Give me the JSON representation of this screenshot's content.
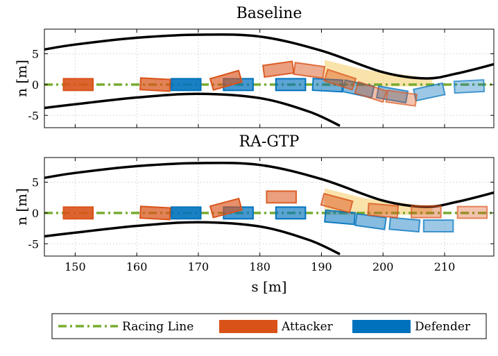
{
  "colors": {
    "racing_line": "#77AC30",
    "attacker": "#D95319",
    "defender": "#0072BD",
    "bound": "#000000",
    "zone": "#F5C242"
  },
  "legend": {
    "racing_line": "Racing Line",
    "attacker": "Attacker",
    "defender": "Defender"
  },
  "chart_data": [
    {
      "type": "line",
      "title": "Baseline",
      "xlabel": "",
      "ylabel": "n [m]",
      "xlim": [
        145,
        218
      ],
      "ylim": [
        -7,
        9
      ],
      "xticks": [
        150,
        160,
        170,
        180,
        190,
        200,
        210
      ],
      "yticks": [
        -5,
        0,
        5
      ],
      "ytick_labels": [
        "-5",
        "0",
        "5"
      ],
      "racing_line_n": 0,
      "upper_bound": [
        [
          145,
          5.7
        ],
        [
          150,
          6.5
        ],
        [
          160,
          7.6
        ],
        [
          170,
          8.1
        ],
        [
          180,
          7.8
        ],
        [
          190,
          5.5
        ],
        [
          200,
          2.0
        ],
        [
          207,
          1.0
        ],
        [
          212,
          1.8
        ],
        [
          218,
          3.3
        ]
      ],
      "lower_bound": [
        [
          145,
          -3.8
        ],
        [
          150,
          -3.2
        ],
        [
          160,
          -2.1
        ],
        [
          170,
          -1.5
        ],
        [
          180,
          -2.2
        ],
        [
          188,
          -4.4
        ],
        [
          193,
          -6.7
        ]
      ],
      "zone": [
        [
          190.5,
          4.0
        ],
        [
          197,
          2.4
        ],
        [
          208,
          1.0
        ],
        [
          208,
          -0.3
        ],
        [
          190.5,
          -0.3
        ]
      ],
      "attacker": [
        {
          "s": 150.5,
          "n": 0.0,
          "heading": 0,
          "alpha": 1.0
        },
        {
          "s": 163.0,
          "n": 0.0,
          "heading": 3,
          "alpha": 0.8
        },
        {
          "s": 174.5,
          "n": 0.7,
          "heading": -16,
          "alpha": 0.7
        },
        {
          "s": 183.0,
          "n": 2.5,
          "heading": -8,
          "alpha": 0.6
        },
        {
          "s": 188.0,
          "n": 2.3,
          "heading": 8,
          "alpha": 0.5
        },
        {
          "s": 193.0,
          "n": 0.8,
          "heading": 18,
          "alpha": 0.45
        },
        {
          "s": 198.0,
          "n": -1.2,
          "heading": 18,
          "alpha": 0.4
        },
        {
          "s": 203.0,
          "n": -2.2,
          "heading": 8,
          "alpha": 0.35
        }
      ],
      "defender": [
        {
          "s": 168.0,
          "n": 0.0,
          "heading": 0,
          "alpha": 1.0
        },
        {
          "s": 176.5,
          "n": 0.0,
          "heading": 0,
          "alpha": 0.8
        },
        {
          "s": 185.0,
          "n": 0.0,
          "heading": 0,
          "alpha": 0.7
        },
        {
          "s": 191.0,
          "n": -0.1,
          "heading": 3,
          "alpha": 0.6
        },
        {
          "s": 196.0,
          "n": -0.7,
          "heading": 12,
          "alpha": 0.5
        },
        {
          "s": 201.5,
          "n": -1.6,
          "heading": 10,
          "alpha": 0.45
        },
        {
          "s": 207.5,
          "n": -1.2,
          "heading": -12,
          "alpha": 0.4
        },
        {
          "s": 214.0,
          "n": -0.3,
          "heading": -3,
          "alpha": 0.35
        }
      ]
    },
    {
      "type": "line",
      "title": "RA-GTP",
      "xlabel": "s [m]",
      "ylabel": "n [m]",
      "xlim": [
        145,
        218
      ],
      "ylim": [
        -7,
        9
      ],
      "xticks": [
        150,
        160,
        170,
        180,
        190,
        200,
        210
      ],
      "yticks": [
        -5,
        0,
        5
      ],
      "ytick_labels": [
        "-5",
        "0",
        "5"
      ],
      "racing_line_n": 0,
      "upper_bound": [
        [
          145,
          5.7
        ],
        [
          150,
          6.5
        ],
        [
          160,
          7.6
        ],
        [
          170,
          8.1
        ],
        [
          180,
          7.8
        ],
        [
          190,
          5.5
        ],
        [
          200,
          2.0
        ],
        [
          207,
          1.0
        ],
        [
          212,
          1.8
        ],
        [
          218,
          3.3
        ]
      ],
      "lower_bound": [
        [
          145,
          -3.8
        ],
        [
          150,
          -3.2
        ],
        [
          160,
          -2.1
        ],
        [
          170,
          -1.5
        ],
        [
          180,
          -2.2
        ],
        [
          188,
          -4.4
        ],
        [
          193,
          -6.7
        ]
      ],
      "zone": [
        [
          190.5,
          4.0
        ],
        [
          197,
          2.4
        ],
        [
          208,
          1.0
        ],
        [
          208,
          -0.3
        ],
        [
          190.5,
          -0.3
        ]
      ],
      "attacker": [
        {
          "s": 150.5,
          "n": 0.0,
          "heading": 0,
          "alpha": 1.0
        },
        {
          "s": 163.0,
          "n": 0.0,
          "heading": 3,
          "alpha": 0.8
        },
        {
          "s": 174.5,
          "n": 0.8,
          "heading": -15,
          "alpha": 0.7
        },
        {
          "s": 183.5,
          "n": 2.6,
          "heading": 0,
          "alpha": 0.6
        },
        {
          "s": 192.5,
          "n": 1.6,
          "heading": 15,
          "alpha": 0.5
        },
        {
          "s": 200.0,
          "n": 0.4,
          "heading": 5,
          "alpha": 0.45
        },
        {
          "s": 207.0,
          "n": 0.2,
          "heading": 0,
          "alpha": 0.4
        },
        {
          "s": 214.5,
          "n": 0.1,
          "heading": 0,
          "alpha": 0.35
        }
      ],
      "defender": [
        {
          "s": 168.0,
          "n": 0.0,
          "heading": 0,
          "alpha": 1.0
        },
        {
          "s": 176.5,
          "n": 0.0,
          "heading": 0,
          "alpha": 0.8
        },
        {
          "s": 185.0,
          "n": 0.0,
          "heading": 0,
          "alpha": 0.7
        },
        {
          "s": 193.0,
          "n": -0.7,
          "heading": 5,
          "alpha": 0.6
        },
        {
          "s": 198.0,
          "n": -1.4,
          "heading": 8,
          "alpha": 0.5
        },
        {
          "s": 203.5,
          "n": -1.9,
          "heading": 5,
          "alpha": 0.45
        },
        {
          "s": 209.0,
          "n": -2.1,
          "heading": 0,
          "alpha": 0.4
        }
      ]
    }
  ]
}
